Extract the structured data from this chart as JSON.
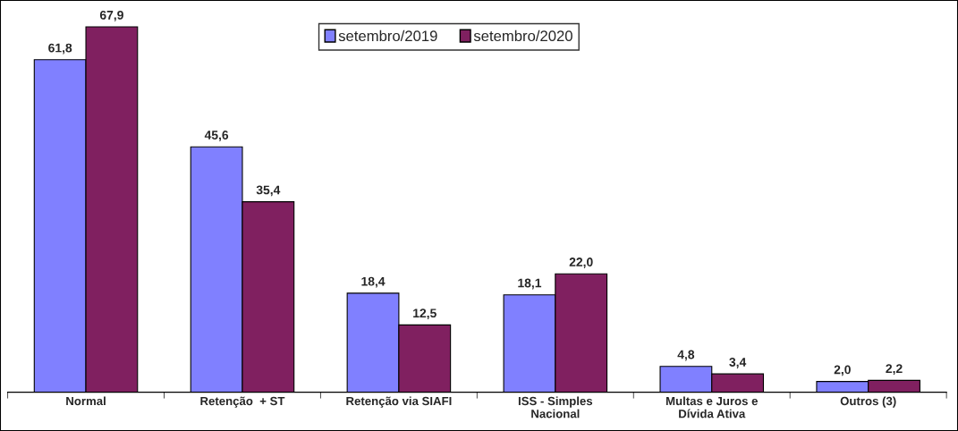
{
  "chart_data": {
    "type": "bar",
    "categories": [
      "Normal",
      "Retenção  + ST",
      "Retenção via SIAFI",
      "ISS - Simples\nNacional",
      "Multas e Juros e\nDívida Ativa",
      "Outros (3)"
    ],
    "series": [
      {
        "name": "setembro/2019",
        "color": "#8080ff",
        "values": [
          61.8,
          45.6,
          18.4,
          18.1,
          4.8,
          2.0
        ],
        "value_labels": [
          "61,8",
          "45,6",
          "18,4",
          "18,1",
          "4,8",
          "2,0"
        ]
      },
      {
        "name": "setembro/2020",
        "color": "#802060",
        "values": [
          67.9,
          35.4,
          12.5,
          22.0,
          3.4,
          2.2
        ],
        "value_labels": [
          "67,9",
          "35,4",
          "12,5",
          "22,0",
          "3,4",
          "2,2"
        ]
      }
    ],
    "legend": "top",
    "grid": false,
    "tick_labels": "x"
  }
}
